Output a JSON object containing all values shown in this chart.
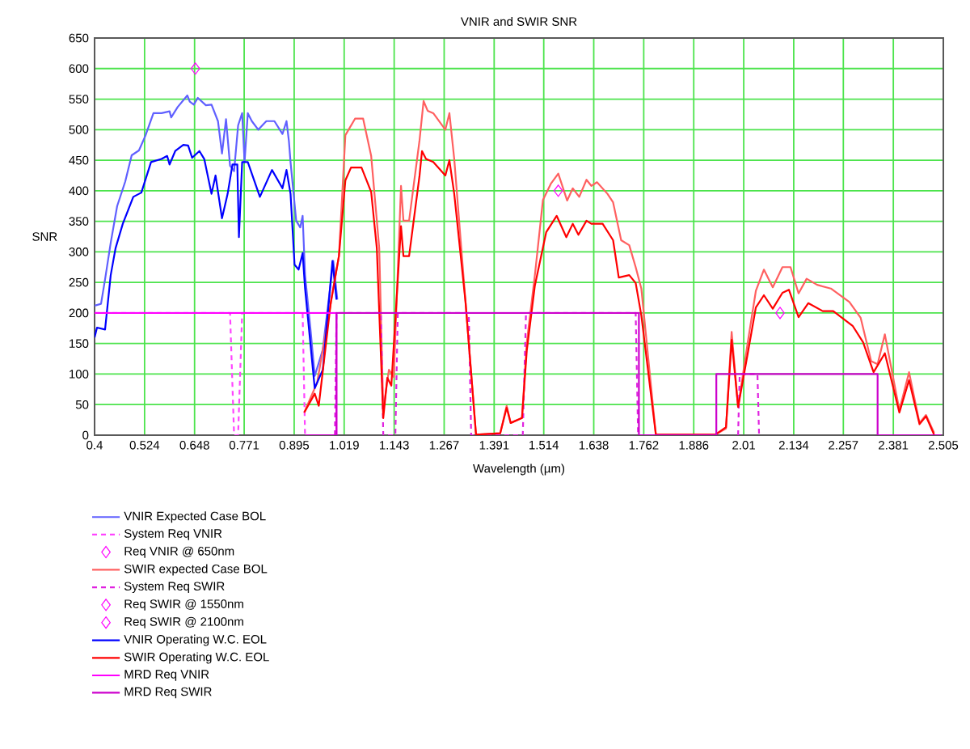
{
  "chart_data": {
    "type": "line",
    "title": "VNIR and SWIR SNR",
    "xlabel": "Wavelength (µm)",
    "ylabel": "SNR",
    "xlim": [
      0.4,
      2.505
    ],
    "ylim": [
      0,
      650
    ],
    "xticks": [
      0.4,
      0.524,
      0.648,
      0.771,
      0.895,
      1.019,
      1.143,
      1.267,
      1.391,
      1.514,
      1.638,
      1.762,
      1.886,
      2.01,
      2.134,
      2.257,
      2.381,
      2.505
    ],
    "yticks": [
      0,
      50,
      100,
      150,
      200,
      250,
      300,
      350,
      400,
      450,
      500,
      550,
      600,
      650
    ],
    "grid": true,
    "legend": "bottom",
    "series": [
      {
        "name": "VNIR Expected Case BOL",
        "color": "#6060ff",
        "line_style": "solid",
        "x": [
          0.4,
          0.416,
          0.426,
          0.44,
          0.456,
          0.476,
          0.492,
          0.51,
          0.526,
          0.546,
          0.566,
          0.586,
          0.59,
          0.606,
          0.63,
          0.636,
          0.646,
          0.656,
          0.676,
          0.69,
          0.706,
          0.716,
          0.726,
          0.736,
          0.746,
          0.756,
          0.766,
          0.772,
          0.78,
          0.79,
          0.806,
          0.826,
          0.846,
          0.866,
          0.876,
          0.882,
          0.886,
          0.9,
          0.91,
          0.916,
          0.922,
          0.936,
          0.946,
          0.966,
          0.992,
          1.002
        ],
        "values": [
          212,
          215,
          255,
          315,
          375,
          415,
          458,
          466,
          490,
          527,
          527,
          530,
          520,
          537,
          556,
          546,
          541,
          552,
          540,
          541,
          514,
          461,
          517,
          441,
          432,
          507,
          527,
          447,
          527,
          514,
          500,
          514,
          514,
          493,
          514,
          481,
          447,
          351,
          340,
          359,
          262,
          170,
          97,
          140,
          285,
          222
        ]
      },
      {
        "name": "System Req VNIR",
        "color": "#ff44ff",
        "line_style": "dashed",
        "x": [
          0.4,
          0.736,
          0.746,
          0.756,
          0.766,
          0.916,
          0.922,
          0.952
        ],
        "values": [
          200,
          200,
          0,
          0,
          200,
          200,
          0,
          0
        ]
      },
      {
        "name": "Req VNIR @ 650nm",
        "type": "scatter",
        "color": "#ff00ff",
        "marker": "diamond",
        "x": [
          0.65
        ],
        "values": [
          600
        ]
      },
      {
        "name": "SWIR expected Case BOL",
        "color": "#ff6060",
        "line_style": "solid",
        "x": [
          0.92,
          0.952,
          1.006,
          1.022,
          1.046,
          1.066,
          1.086,
          1.106,
          1.116,
          1.13,
          1.142,
          1.16,
          1.166,
          1.18,
          1.206,
          1.216,
          1.226,
          1.24,
          1.27,
          1.28,
          1.292,
          1.32,
          1.346,
          1.406,
          1.422,
          1.432,
          1.46,
          1.472,
          1.492,
          1.512,
          1.532,
          1.55,
          1.572,
          1.586,
          1.602,
          1.62,
          1.632,
          1.646,
          1.672,
          1.686,
          1.706,
          1.726,
          1.742,
          1.756,
          1.792,
          1.94,
          1.966,
          1.98,
          1.996,
          2.02,
          2.04,
          2.06,
          2.082,
          2.106,
          2.126,
          2.146,
          2.166,
          2.192,
          2.226,
          2.272,
          2.3,
          2.326,
          2.342,
          2.36,
          2.396,
          2.42,
          2.446,
          2.462,
          2.482
        ],
        "values": [
          37,
          86,
          293,
          491,
          518,
          518,
          457,
          306,
          41,
          107,
          95,
          408,
          351,
          351,
          483,
          547,
          531,
          527,
          500,
          527,
          452,
          218,
          1,
          3,
          48,
          20,
          28,
          152,
          262,
          385,
          412,
          428,
          384,
          404,
          390,
          418,
          408,
          414,
          395,
          381,
          319,
          311,
          275,
          240,
          1,
          1,
          11,
          169,
          46,
          152,
          236,
          271,
          242,
          275,
          275,
          232,
          256,
          246,
          240,
          218,
          192,
          121,
          116,
          165,
          41,
          103,
          20,
          33,
          4
        ]
      },
      {
        "name": "System Req SWIR",
        "color": "#e022e0",
        "line_style": "dashed",
        "x": [
          0.996,
          1.0,
          1.11,
          1.116,
          1.146,
          1.152,
          1.328,
          1.334,
          1.462,
          1.47,
          1.742,
          1.748,
          1.9,
          1.996,
          2.0,
          2.044,
          2.048
        ],
        "values": [
          0,
          200,
          200,
          0,
          0,
          200,
          200,
          0,
          0,
          200,
          200,
          0,
          null,
          0,
          100,
          100,
          0
        ]
      },
      {
        "name": "Req SWIR @ 1550nm",
        "type": "scatter",
        "color": "#ff00ff",
        "marker": "diamond",
        "x": [
          1.55
        ],
        "values": [
          400
        ]
      },
      {
        "name": "Req SWIR @ 2100nm",
        "type": "scatter",
        "color": "#ff00ff",
        "marker": "diamond",
        "x": [
          2.1
        ],
        "values": [
          200
        ]
      },
      {
        "name": "VNIR Operating W.C. EOL",
        "color": "#0000ff",
        "line_style": "solid",
        "x": [
          0.4,
          0.406,
          0.426,
          0.44,
          0.452,
          0.47,
          0.496,
          0.516,
          0.54,
          0.566,
          0.58,
          0.586,
          0.6,
          0.62,
          0.632,
          0.642,
          0.66,
          0.672,
          0.69,
          0.7,
          0.716,
          0.73,
          0.742,
          0.754,
          0.758,
          0.766,
          0.78,
          0.81,
          0.84,
          0.866,
          0.876,
          0.886,
          0.896,
          0.906,
          0.916,
          0.922,
          0.946,
          0.966,
          0.99,
          1.0
        ],
        "values": [
          160,
          176,
          173,
          262,
          306,
          346,
          390,
          397,
          447,
          452,
          457,
          443,
          465,
          475,
          474,
          454,
          465,
          452,
          395,
          425,
          355,
          395,
          443,
          443,
          324,
          447,
          447,
          390,
          434,
          404,
          434,
          395,
          279,
          271,
          298,
          240,
          77,
          107,
          285,
          222
        ]
      },
      {
        "name": "SWIR Operating W.C. EOL",
        "color": "#ff0000",
        "line_style": "solid",
        "x": [
          0.92,
          0.946,
          0.956,
          0.986,
          1.006,
          1.022,
          1.036,
          1.062,
          1.086,
          1.1,
          1.116,
          1.126,
          1.136,
          1.16,
          1.166,
          1.18,
          1.206,
          1.212,
          1.222,
          1.24,
          1.27,
          1.28,
          1.292,
          1.32,
          1.346,
          1.406,
          1.422,
          1.432,
          1.46,
          1.472,
          1.492,
          1.52,
          1.546,
          1.57,
          1.586,
          1.6,
          1.62,
          1.632,
          1.66,
          1.686,
          1.7,
          1.726,
          1.742,
          1.756,
          1.792,
          1.94,
          1.966,
          1.98,
          1.996,
          2.02,
          2.04,
          2.06,
          2.082,
          2.106,
          2.122,
          2.146,
          2.17,
          2.206,
          2.232,
          2.28,
          2.306,
          2.332,
          2.36,
          2.396,
          2.42,
          2.446,
          2.462,
          2.482
        ],
        "values": [
          37,
          68,
          48,
          218,
          293,
          417,
          438,
          438,
          398,
          306,
          28,
          94,
          81,
          342,
          293,
          293,
          425,
          465,
          452,
          447,
          425,
          450,
          395,
          218,
          1,
          3,
          45,
          20,
          28,
          139,
          245,
          332,
          359,
          324,
          346,
          328,
          351,
          346,
          346,
          319,
          258,
          262,
          249,
          196,
          1,
          1,
          13,
          156,
          46,
          134,
          209,
          229,
          207,
          233,
          238,
          193,
          216,
          203,
          203,
          179,
          152,
          103,
          134,
          37,
          90,
          18,
          31,
          1
        ]
      },
      {
        "name": "MRD Req VNIR",
        "color": "#ff00ff",
        "line_style": "solid",
        "x": [
          0.4,
          1.0,
          1.0
        ],
        "values": [
          200,
          200,
          0
        ]
      },
      {
        "name": "MRD Req SWIR",
        "color": "#cc00cc",
        "line_style": "solid",
        "x": [
          0.922,
          1.0,
          1.0,
          1.75,
          1.75,
          1.942,
          1.942,
          2.342,
          2.342,
          2.5
        ],
        "values": [
          0,
          0,
          200,
          200,
          0,
          0,
          100,
          100,
          0,
          0
        ]
      }
    ]
  }
}
